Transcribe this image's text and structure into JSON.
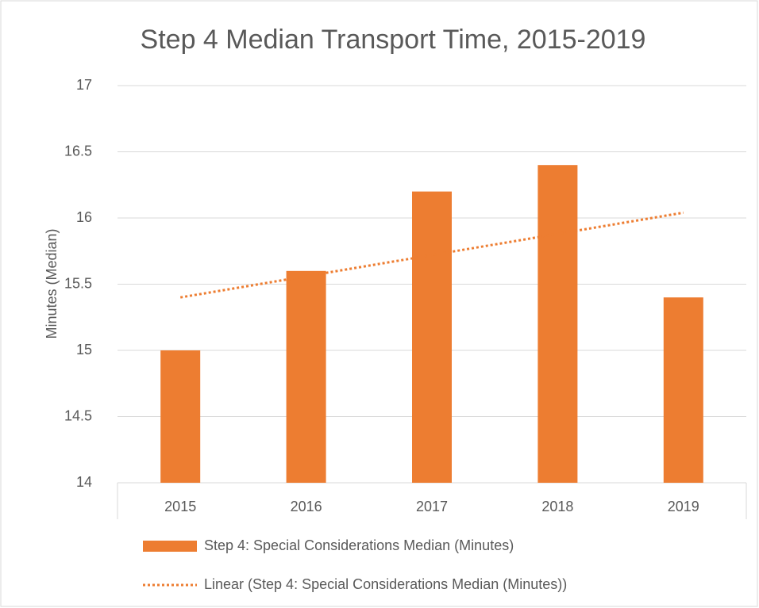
{
  "chart_data": {
    "type": "bar",
    "title": "Step 4 Median Transport Time, 2015-2019",
    "y_label": "Minutes (Median)",
    "categories": [
      "2015",
      "2016",
      "2017",
      "2018",
      "2019"
    ],
    "series": [
      {
        "name": "Step 4: Special Considerations Median (Minutes)",
        "type": "bar",
        "color": "#ed7d31",
        "values": [
          15,
          15.6,
          16.2,
          16.4,
          15.4
        ]
      },
      {
        "name": "Linear (Step 4: Special Considerations Median (Minutes))",
        "type": "line",
        "style": "dotted",
        "color": "#ed7d31",
        "values": [
          15.4,
          15.56,
          15.72,
          15.88,
          16.04
        ]
      }
    ],
    "ylim": [
      14,
      17
    ],
    "yticks": [
      14,
      14.5,
      15,
      15.5,
      16,
      16.5,
      17
    ],
    "grid": true,
    "legend": "bottom"
  }
}
